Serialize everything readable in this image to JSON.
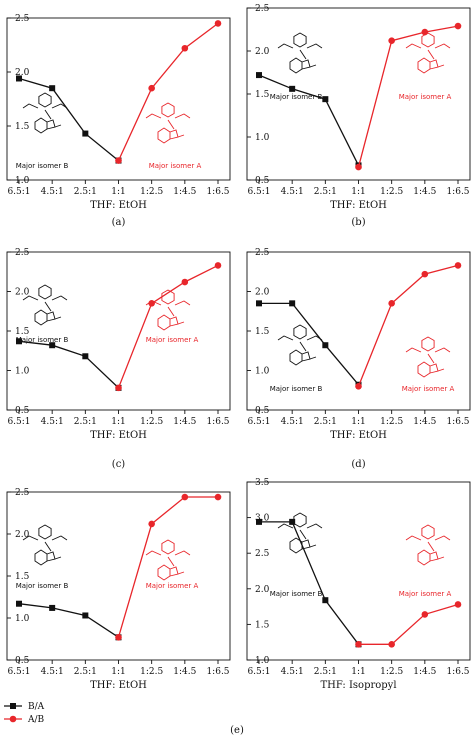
{
  "figure": {
    "series_colors": {
      "B/A": "#111111",
      "A/B": "#e8262b"
    },
    "legend": [
      "B/A",
      "A/B"
    ],
    "figure_caption": "(e)"
  },
  "chart_data": [
    {
      "type": "line",
      "caption": "(a)",
      "xlabel": "THF: EtOH",
      "categories": [
        "6.5:1",
        "4.5:1",
        "2.5:1",
        "1:1",
        "1:2.5",
        "1:4.5",
        "1:6.5"
      ],
      "ylim": [
        1.0,
        2.5
      ],
      "yticks": [
        "1.0",
        "1.5",
        "2.0",
        "2.5"
      ],
      "series": [
        {
          "name": "B/A",
          "values": [
            1.94,
            1.85,
            1.43,
            1.18,
            null,
            null,
            null
          ]
        },
        {
          "name": "A/B",
          "values": [
            null,
            null,
            null,
            1.18,
            1.85,
            2.22,
            2.45
          ]
        }
      ],
      "labels": {
        "B": "Major isomer B",
        "A": "Major isomer A"
      }
    },
    {
      "type": "line",
      "caption": "(b)",
      "xlabel": "THF: EtOH",
      "categories": [
        "6.5:1",
        "4.5:1",
        "2.5:1",
        "1:1",
        "1:2.5",
        "1:4.5",
        "1:6.5"
      ],
      "ylim": [
        0.5,
        2.5
      ],
      "yticks": [
        "0.5",
        "1.0",
        "1.5",
        "2.0",
        "2.5"
      ],
      "series": [
        {
          "name": "B/A",
          "values": [
            1.72,
            1.56,
            1.44,
            0.67,
            null,
            null,
            null
          ]
        },
        {
          "name": "A/B",
          "values": [
            null,
            null,
            null,
            0.65,
            2.12,
            2.22,
            2.29
          ]
        }
      ],
      "labels": {
        "B": "Major isomer B",
        "A": "Major isomer A"
      }
    },
    {
      "type": "line",
      "caption": "(c)",
      "xlabel": "THF: EtOH",
      "categories": [
        "6.5:1",
        "4.5:1",
        "2.5:1",
        "1:1",
        "1:2.5",
        "1:4.5",
        "1:6.5"
      ],
      "ylim": [
        0.5,
        2.5
      ],
      "yticks": [
        "0.5",
        "1.0",
        "1.5",
        "2.0",
        "2.5"
      ],
      "series": [
        {
          "name": "B/A",
          "values": [
            1.37,
            1.32,
            1.18,
            0.78,
            null,
            null,
            null
          ]
        },
        {
          "name": "A/B",
          "values": [
            null,
            null,
            null,
            0.78,
            1.85,
            2.12,
            2.33
          ]
        }
      ],
      "labels": {
        "B": "Major isomer B",
        "A": "Major isomer A"
      }
    },
    {
      "type": "line",
      "caption": "(d)",
      "xlabel": "THF: EtOH",
      "categories": [
        "6.5:1",
        "4.5:1",
        "2.5:1",
        "1:1",
        "1:2.5",
        "1:4.5",
        "1:6.5"
      ],
      "ylim": [
        0.5,
        2.5
      ],
      "yticks": [
        "0.5",
        "1.0",
        "1.5",
        "2.0",
        "2.5"
      ],
      "series": [
        {
          "name": "B/A",
          "values": [
            1.85,
            1.85,
            1.32,
            0.82,
            null,
            null,
            null
          ]
        },
        {
          "name": "A/B",
          "values": [
            null,
            null,
            null,
            0.8,
            1.85,
            2.22,
            2.33
          ]
        }
      ],
      "labels": {
        "B": "Major isomer B",
        "A": "Major isomer A"
      }
    },
    {
      "type": "line",
      "caption": "",
      "xlabel": "THF: EtOH",
      "categories": [
        "6.5:1",
        "4.5:1",
        "2.5:1",
        "1:1",
        "1:2.5",
        "1:4.5",
        "1:6.5"
      ],
      "ylim": [
        0.5,
        2.5
      ],
      "yticks": [
        "0.5",
        "1.0",
        "1.5",
        "2.0",
        "2.5"
      ],
      "series": [
        {
          "name": "B/A",
          "values": [
            1.17,
            1.12,
            1.03,
            0.77,
            null,
            null,
            null
          ]
        },
        {
          "name": "A/B",
          "values": [
            null,
            null,
            null,
            0.77,
            2.12,
            2.44,
            2.44
          ]
        }
      ],
      "labels": {
        "B": "Major isomer B",
        "A": "Major isomer A"
      }
    },
    {
      "type": "line",
      "caption": "",
      "xlabel": "THF: Isopropyl",
      "categories": [
        "6.5:1",
        "4.5:1",
        "2.5:1",
        "1:1",
        "1:2.5",
        "1:4.5",
        "1:6.5"
      ],
      "ylim": [
        1.0,
        3.5
      ],
      "yticks": [
        "1.0",
        "1.5",
        "2.0",
        "2.5",
        "3.0",
        "3.5"
      ],
      "series": [
        {
          "name": "B/A",
          "values": [
            2.94,
            2.94,
            1.84,
            1.22,
            null,
            null,
            null
          ]
        },
        {
          "name": "A/B",
          "values": [
            null,
            null,
            null,
            1.22,
            1.22,
            1.64,
            1.78
          ]
        }
      ],
      "labels": {
        "B": "Major isomer B",
        "A": "Major isomer A"
      }
    }
  ]
}
